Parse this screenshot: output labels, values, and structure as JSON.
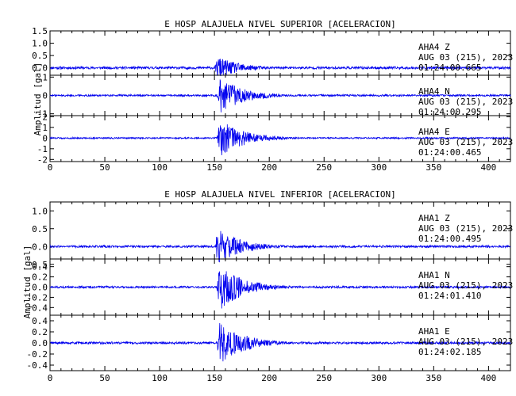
{
  "figure": {
    "ylabel": "Amplitud [gal]"
  },
  "styles": {
    "trace_color": "#0000ee",
    "axis_color": "#000000",
    "background": "#ffffff"
  },
  "chart_data": [
    {
      "type": "line",
      "title": "E HOSP ALAJUELA NIVEL SUPERIOR [ACELERACION]",
      "xlabel": "",
      "ylabel": "Amplitud [gal]",
      "xlim": [
        0,
        420
      ],
      "xticks": [
        "0",
        "50",
        "100",
        "150",
        "200",
        "250",
        "300",
        "350",
        "400"
      ],
      "grid": false,
      "panels": [
        {
          "station": "AHA4",
          "component": "Z",
          "date_line": "AUG 03 (215), 2023",
          "time_line": "01:24:00.665",
          "ylim": [
            -0.3,
            1.5
          ],
          "yticks": [
            "1.5",
            "1.0",
            "0.5",
            "0.0"
          ],
          "ytick_values": [
            1.5,
            1.0,
            0.5,
            0.0
          ],
          "event_onset_s": 150,
          "peak_abs": 0.45,
          "noise_abs": 0.05
        },
        {
          "station": "AHA4",
          "component": "N",
          "date_line": "AUG 03 (215), 2023",
          "time_line": "01:24:00.295",
          "ylim": [
            -1.1,
            1.1
          ],
          "yticks": [
            "1",
            "0",
            "-1"
          ],
          "ytick_values": [
            1,
            0,
            -1
          ],
          "event_onset_s": 152,
          "peak_abs": 1.0,
          "noise_abs": 0.05
        },
        {
          "station": "AHA4",
          "component": "E",
          "date_line": "AUG 03 (215), 2023",
          "time_line": "01:24:00.465",
          "ylim": [
            -2.2,
            2.1
          ],
          "yticks": [
            "2",
            "1",
            "0",
            "-1",
            "-2"
          ],
          "ytick_values": [
            2,
            1,
            0,
            -1,
            -2
          ],
          "event_onset_s": 152,
          "peak_abs": 1.8,
          "noise_abs": 0.07
        }
      ]
    },
    {
      "type": "line",
      "title": "E HOSP ALAJUELA NIVEL INFERIOR [ACELERACION]",
      "xlabel": "",
      "ylabel": "Amplitud [gal]",
      "xlim": [
        0,
        420
      ],
      "xticks": [
        "0",
        "50",
        "100",
        "150",
        "200",
        "250",
        "300",
        "350",
        "400"
      ],
      "grid": false,
      "panels": [
        {
          "station": "AHA1",
          "component": "Z",
          "date_line": "AUG 03 (215), 2023",
          "time_line": "01:24:00.495",
          "ylim": [
            -0.35,
            1.25
          ],
          "yticks": [
            "1.0",
            "0.5",
            "0.0",
            "-0.5"
          ],
          "ytick_values": [
            1.0,
            0.5,
            0.0,
            -0.5
          ],
          "event_onset_s": 150,
          "peak_abs": 0.5,
          "noise_abs": 0.03
        },
        {
          "station": "AHA1",
          "component": "N",
          "date_line": "AUG 03 (215), 2023",
          "time_line": "01:24:01.410",
          "ylim": [
            -0.55,
            0.55
          ],
          "yticks": [
            "0.4",
            "0.2",
            "0.0",
            "-0.2",
            "-0.4"
          ],
          "ytick_values": [
            0.4,
            0.2,
            0.0,
            -0.2,
            -0.4
          ],
          "event_onset_s": 152,
          "peak_abs": 0.45,
          "noise_abs": 0.02
        },
        {
          "station": "AHA1",
          "component": "E",
          "date_line": "AUG 03 (215), 2023",
          "time_line": "01:24:02.185",
          "ylim": [
            -0.5,
            0.5
          ],
          "yticks": [
            "0.4",
            "0.2",
            "0.0",
            "-0.2",
            "-0.4"
          ],
          "ytick_values": [
            0.4,
            0.2,
            0.0,
            -0.2,
            -0.4
          ],
          "event_onset_s": 152,
          "peak_abs": 0.4,
          "noise_abs": 0.02
        }
      ]
    }
  ]
}
